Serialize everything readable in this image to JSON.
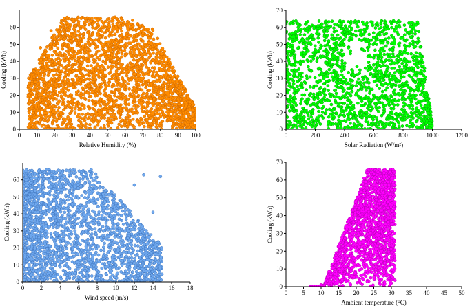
{
  "chart_data": [
    {
      "type": "scatter",
      "xlabel": "Relative Humidity (%)",
      "ylabel": "Cooling (kWh)",
      "xlim": [
        0,
        100
      ],
      "ylim": [
        0,
        70
      ],
      "xticks": [
        0,
        10,
        20,
        30,
        40,
        50,
        60,
        70,
        80,
        90,
        100
      ],
      "yticks": [
        0,
        10,
        20,
        30,
        40,
        50,
        60
      ],
      "color": "#FF8C00",
      "outline_color": "#C86400",
      "x_data_range": [
        5,
        100
      ],
      "y_data_range": [
        0,
        66
      ],
      "points": [
        [
          8,
          35
        ],
        [
          10,
          22
        ],
        [
          12,
          48
        ],
        [
          15,
          10
        ],
        [
          18,
          58
        ],
        [
          20,
          30
        ],
        [
          24,
          64
        ],
        [
          28,
          45
        ],
        [
          30,
          15
        ],
        [
          35,
          60
        ],
        [
          40,
          25
        ],
        [
          45,
          52
        ],
        [
          50,
          5
        ],
        [
          55,
          40
        ],
        [
          60,
          62
        ],
        [
          65,
          20
        ],
        [
          70,
          55
        ],
        [
          75,
          12
        ],
        [
          80,
          35
        ],
        [
          85,
          8
        ],
        [
          90,
          22
        ],
        [
          95,
          15
        ],
        [
          98,
          5
        ]
      ]
    },
    {
      "type": "scatter",
      "xlabel": "Solar Radiation (W/m²)",
      "ylabel": "Cooling (kWh)",
      "xlim": [
        0,
        1200
      ],
      "ylim": [
        0,
        70
      ],
      "xticks": [
        0,
        200,
        400,
        600,
        800,
        1000,
        1200
      ],
      "yticks": [
        0,
        10,
        20,
        30,
        40,
        50,
        60,
        70
      ],
      "color": "#00FF00",
      "outline_color": "#00A000",
      "x_data_range": [
        0,
        1000
      ],
      "y_data_range": [
        0,
        66
      ],
      "points": [
        [
          0,
          5
        ],
        [
          0,
          30
        ],
        [
          0,
          62
        ],
        [
          50,
          55
        ],
        [
          100,
          15
        ],
        [
          150,
          40
        ],
        [
          200,
          60
        ],
        [
          250,
          10
        ],
        [
          300,
          48
        ],
        [
          350,
          25
        ],
        [
          400,
          5
        ],
        [
          450,
          35
        ],
        [
          500,
          58
        ],
        [
          550,
          18
        ],
        [
          600,
          42
        ],
        [
          650,
          60
        ],
        [
          700,
          8
        ],
        [
          750,
          30
        ],
        [
          800,
          45
        ],
        [
          850,
          20
        ],
        [
          900,
          10
        ],
        [
          950,
          3
        ]
      ]
    },
    {
      "type": "scatter",
      "xlabel": "Wind speed (m/s)",
      "ylabel": "Cooling (kWh)",
      "xlim": [
        0,
        18
      ],
      "ylim": [
        0,
        70
      ],
      "xticks": [
        0,
        2,
        4,
        6,
        8,
        10,
        12,
        14,
        16,
        18
      ],
      "yticks": [
        0,
        10,
        20,
        30,
        40,
        50,
        60
      ],
      "color": "#6FA8EE",
      "outline_color": "#3A6FB8",
      "x_data_range": [
        0,
        15
      ],
      "y_data_range": [
        0,
        66
      ],
      "points": [
        [
          0.2,
          60
        ],
        [
          1,
          20
        ],
        [
          2,
          45
        ],
        [
          3,
          65
        ],
        [
          4,
          10
        ],
        [
          5,
          35
        ],
        [
          6,
          55
        ],
        [
          7,
          25
        ],
        [
          8,
          5
        ],
        [
          9,
          40
        ],
        [
          10,
          18
        ],
        [
          11,
          30
        ],
        [
          12,
          57
        ],
        [
          13,
          63
        ],
        [
          13,
          11
        ],
        [
          14,
          41
        ],
        [
          14.8,
          62
        ],
        [
          14.9,
          14
        ]
      ]
    },
    {
      "type": "scatter",
      "xlabel": "Ambient temperature (⁰C)",
      "ylabel": "Cooling (kWh)",
      "xlim": [
        0,
        50
      ],
      "ylim": [
        0,
        70
      ],
      "xticks": [
        0,
        5,
        10,
        15,
        20,
        25,
        30,
        35,
        40,
        45,
        50
      ],
      "yticks": [
        0,
        10,
        20,
        30,
        40,
        50,
        60,
        70
      ],
      "color": "#FF00FF",
      "outline_color": "#B000B0",
      "x_data_range": [
        7,
        31
      ],
      "y_data_range": [
        0,
        66
      ],
      "points": [
        [
          7,
          0
        ],
        [
          10,
          1
        ],
        [
          12,
          5
        ],
        [
          14,
          12
        ],
        [
          16,
          20
        ],
        [
          18,
          32
        ],
        [
          20,
          42
        ],
        [
          22,
          55
        ],
        [
          23,
          64
        ],
        [
          25,
          10
        ],
        [
          27,
          50
        ],
        [
          28,
          25
        ],
        [
          30,
          60
        ],
        [
          31,
          35
        ]
      ]
    }
  ]
}
